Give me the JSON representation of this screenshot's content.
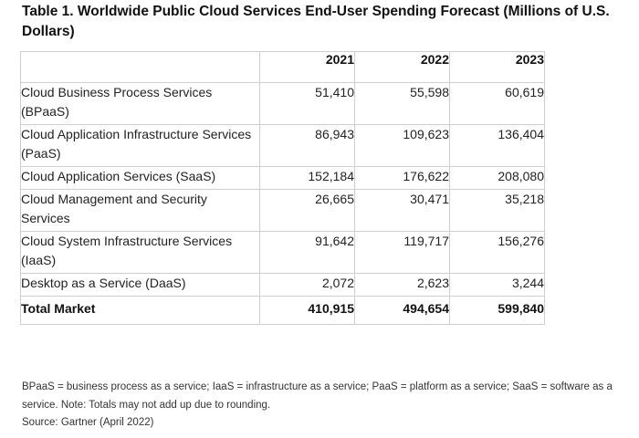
{
  "chart_data": {
    "type": "table",
    "title": "Table 1. Worldwide Public Cloud Services End-User Spending Forecast (Millions of U.S. Dollars)",
    "columns": [
      "2021",
      "2022",
      "2023"
    ],
    "rows": [
      {
        "label": "Cloud Business Process Services (BPaaS)",
        "values": [
          "51,410",
          "55,598",
          "60,619"
        ]
      },
      {
        "label": "Cloud Application Infrastructure Services (PaaS)",
        "values": [
          "86,943",
          "109,623",
          "136,404"
        ]
      },
      {
        "label": "Cloud Application Services (SaaS)",
        "values": [
          "152,184",
          "176,622",
          "208,080"
        ]
      },
      {
        "label": "Cloud Management and Security Services",
        "values": [
          "26,665",
          "30,471",
          "35,218"
        ]
      },
      {
        "label": "Cloud System Infrastructure Services (IaaS)",
        "values": [
          "91,642",
          "119,717",
          "156,276"
        ]
      },
      {
        "label": "Desktop as a Service (DaaS)",
        "values": [
          "2,072",
          "2,623",
          "3,244"
        ]
      }
    ],
    "total": {
      "label": "Total Market",
      "values": [
        "410,915",
        "494,654",
        "599,840"
      ]
    },
    "note": "BPaaS = business process as a service; IaaS = infrastructure as a service; PaaS = platform as a service; SaaS = software as a service. Note: Totals may not add up due to rounding.",
    "source": "Source: Gartner (April 2022)"
  }
}
